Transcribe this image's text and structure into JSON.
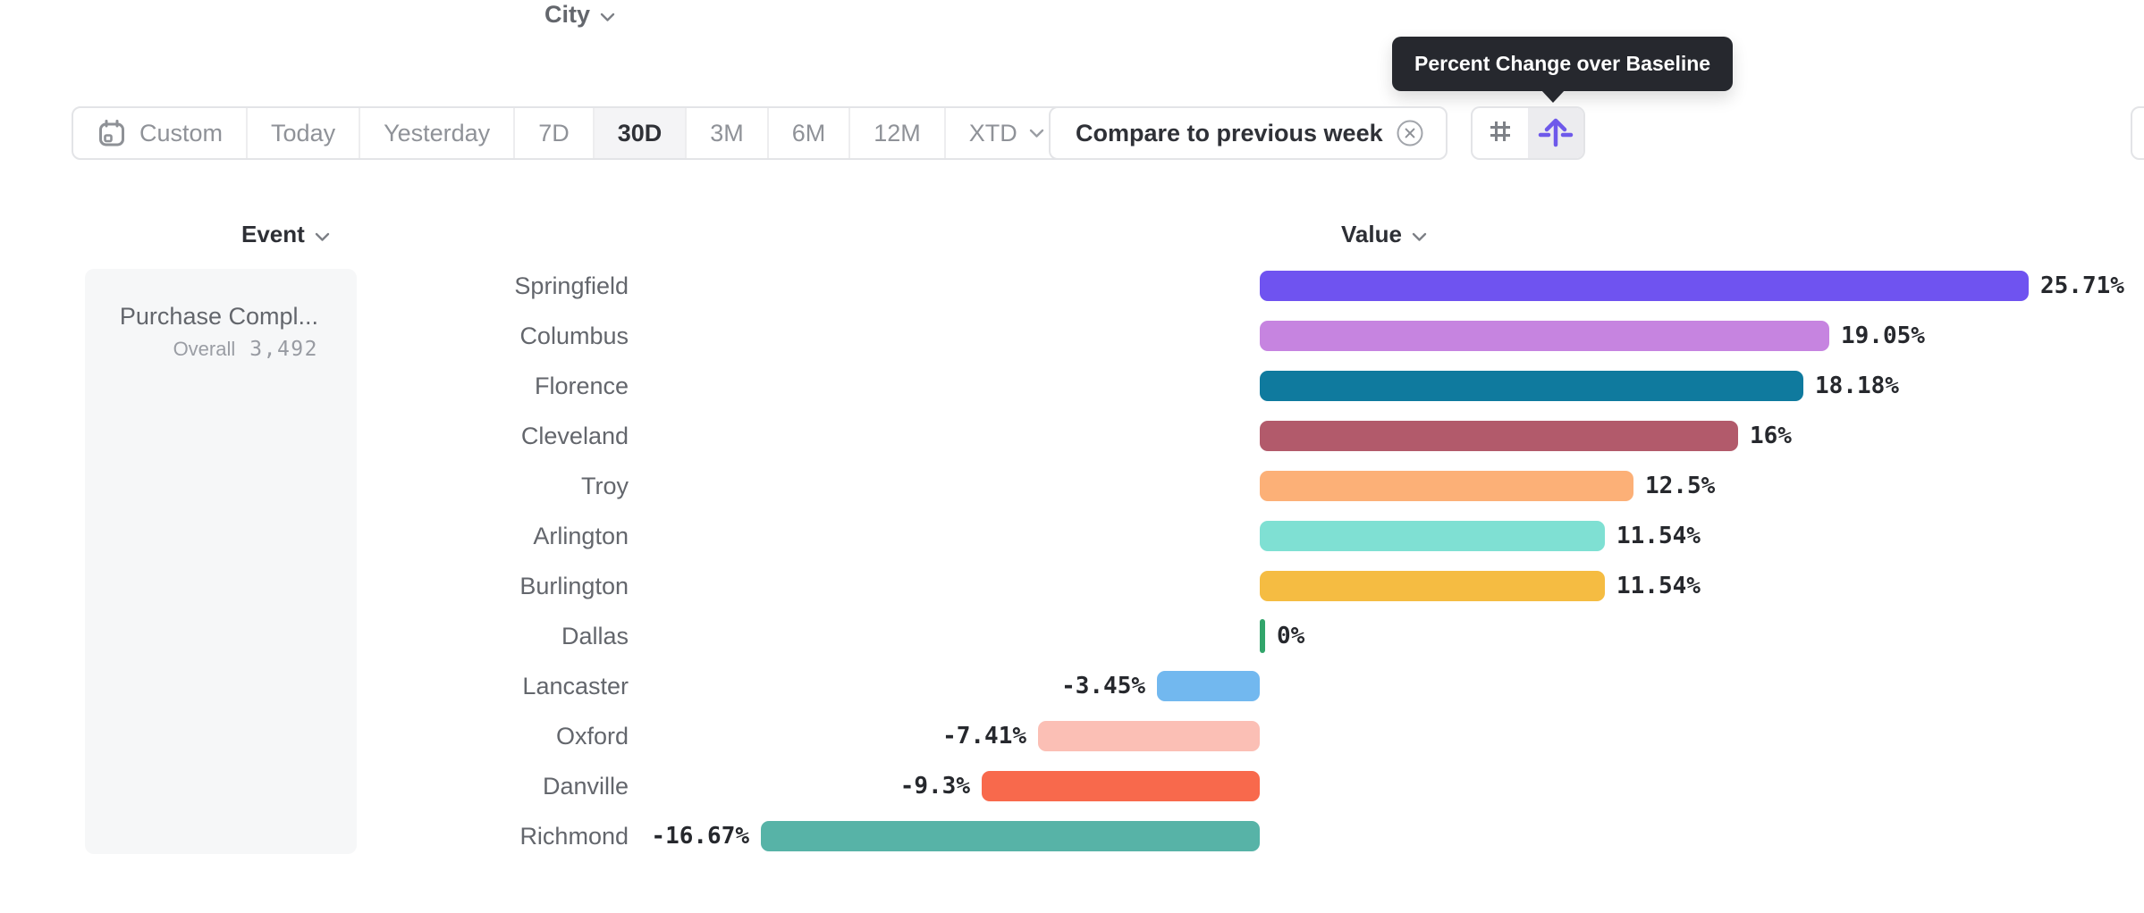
{
  "tooltip": {
    "text": "Percent Change over Baseline"
  },
  "toolbar": {
    "date_ranges": [
      {
        "label": "Custom",
        "icon": "calendar",
        "selected": false
      },
      {
        "label": "Today",
        "selected": false
      },
      {
        "label": "Yesterday",
        "selected": false
      },
      {
        "label": "7D",
        "selected": false
      },
      {
        "label": "30D",
        "selected": true
      },
      {
        "label": "3M",
        "selected": false
      },
      {
        "label": "6M",
        "selected": false
      },
      {
        "label": "12M",
        "selected": false
      },
      {
        "label": "XTD",
        "chevron": true,
        "selected": false
      }
    ],
    "compare": {
      "label": "Compare to previous week"
    },
    "view_modes": [
      {
        "name": "absolute-numbers",
        "icon": "hash-icon",
        "selected": false
      },
      {
        "name": "percent-change-over-baseline",
        "icon": "baseline-arrow-icon",
        "selected": true,
        "accent": "#6e59ea"
      }
    ]
  },
  "columns": {
    "event": "Event",
    "city": "City",
    "value": "Value"
  },
  "event_card": {
    "name": "Purchase Compl...",
    "overall_label": "Overall",
    "overall_value": "3,492"
  },
  "chart_data": {
    "type": "bar",
    "orientation": "horizontal",
    "title": "Percent Change over Baseline",
    "categories": [
      "Springfield",
      "Columbus",
      "Florence",
      "Cleveland",
      "Troy",
      "Arlington",
      "Burlington",
      "Dallas",
      "Lancaster",
      "Oxford",
      "Danville",
      "Richmond"
    ],
    "values": [
      25.71,
      19.05,
      18.18,
      16,
      12.5,
      11.54,
      11.54,
      0,
      -3.45,
      -7.41,
      -9.3,
      -16.67
    ],
    "labels": [
      "25.71%",
      "19.05%",
      "18.18%",
      "16%",
      "12.5%",
      "11.54%",
      "11.54%",
      "0%",
      "-3.45%",
      "-7.41%",
      "-9.3%",
      "-16.67%"
    ],
    "colors": [
      "#6f53f0",
      "#c684e0",
      "#0f7a9e",
      "#b25a6b",
      "#fcb077",
      "#7fe0d3",
      "#f5bc42",
      "#32a56b",
      "#72b8ef",
      "#fbbfb5",
      "#f8694c",
      "#57b3a7"
    ],
    "xlim": [
      -16.67,
      25.71
    ],
    "baseline": 0,
    "grid": false,
    "legend": false,
    "zero_marker_color": "#32a56b"
  }
}
